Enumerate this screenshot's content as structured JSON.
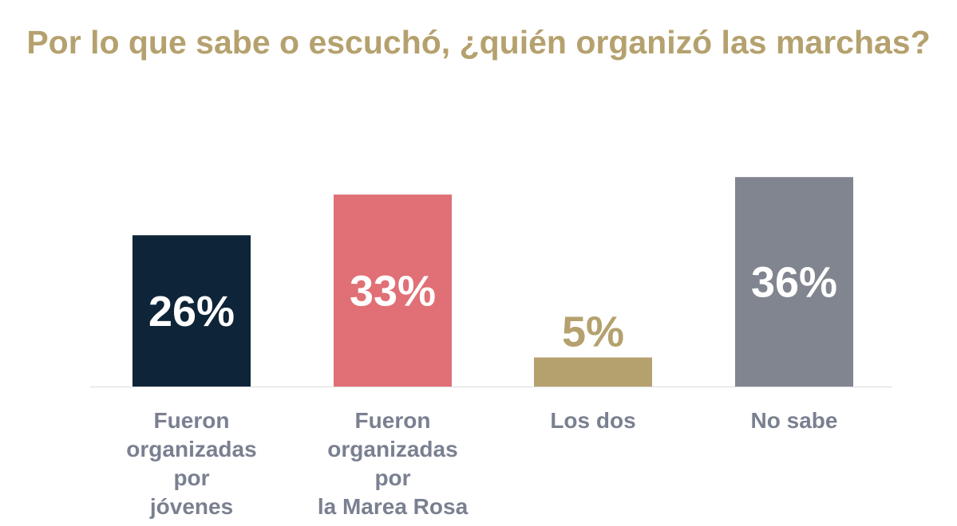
{
  "chart_data": {
    "type": "bar",
    "title": "Por lo que sabe o escuchó, ¿quién organizó las marchas?",
    "categories": [
      [
        "Fueron",
        "organizadas por",
        "jóvenes"
      ],
      [
        "Fueron",
        "organizadas por",
        "la Marea Rosa"
      ],
      [
        "Los dos"
      ],
      [
        "No sabe"
      ]
    ],
    "values": [
      26,
      33,
      5,
      36
    ],
    "value_labels": [
      "26%",
      "33%",
      "5%",
      "36%"
    ],
    "unit": "%",
    "ylim": [
      0,
      50
    ],
    "xlabel": "",
    "ylabel": "",
    "grid": false,
    "legend": "none",
    "colors": [
      "#0e2438",
      "#e07075",
      "#b5a16e",
      "#81858f"
    ],
    "value_label_colors": [
      "#ffffff",
      "#ffffff",
      "#b5a16e",
      "#ffffff"
    ],
    "title_color": "#b5a16e",
    "category_label_color": "#7a8090"
  }
}
